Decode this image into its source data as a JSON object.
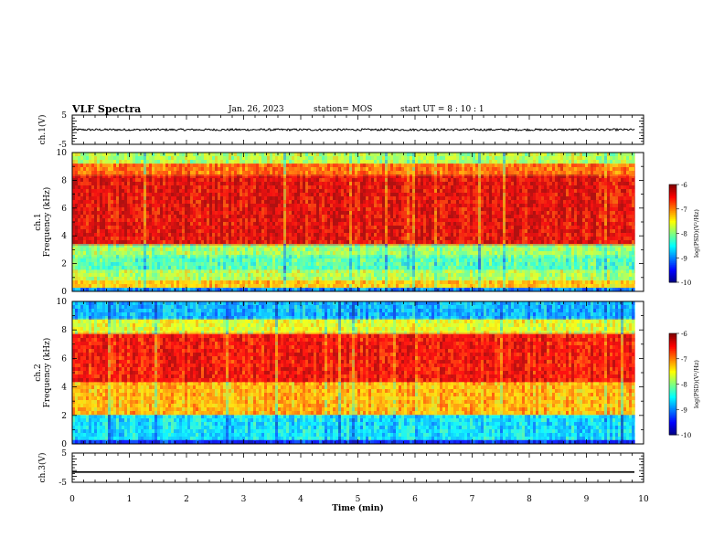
{
  "header": {
    "title": "VLF Spectra",
    "date": "Jan. 26, 2023",
    "station": "station= MOS",
    "start": "start UT =  8 : 10 : 1"
  },
  "chart_data": [
    {
      "type": "line",
      "ylabel": "ch.1(V)",
      "xlim": [
        0,
        10
      ],
      "ylim": [
        -5,
        5
      ],
      "y_ticks": [
        "5",
        "-5"
      ],
      "trace": {
        "level_v": 0.0,
        "noise_v": 0.35,
        "end_min": 9.85
      }
    },
    {
      "type": "heatmap",
      "ylabel": "ch.1\nFrequency (kHz)",
      "xlim": [
        0,
        10
      ],
      "ylim": [
        0,
        10
      ],
      "y_ticks": [
        "0",
        "2",
        "4",
        "6",
        "8",
        "10"
      ],
      "data_end_min": 9.85,
      "colorbar": {
        "label": "log(PSD)(V²/Hz)",
        "range": [
          -10,
          -6
        ],
        "ticks": [
          "-6",
          "-7",
          "-8",
          "-9",
          "-10"
        ]
      },
      "bands_khz": [
        {
          "from": 0.0,
          "to": 0.25,
          "level": -9.0
        },
        {
          "from": 0.25,
          "to": 0.8,
          "level": -7.3
        },
        {
          "from": 0.8,
          "to": 1.5,
          "level": -7.8
        },
        {
          "from": 1.5,
          "to": 2.5,
          "level": -8.2
        },
        {
          "from": 2.5,
          "to": 3.3,
          "level": -7.9
        },
        {
          "from": 3.3,
          "to": 8.3,
          "level": -6.4
        },
        {
          "from": 8.3,
          "to": 9.2,
          "level": -6.9
        },
        {
          "from": 9.2,
          "to": 10.0,
          "level": -7.8
        }
      ]
    },
    {
      "type": "heatmap",
      "ylabel": "ch.2\nFrequency (kHz)",
      "xlim": [
        0,
        10
      ],
      "ylim": [
        0,
        10
      ],
      "y_ticks": [
        "0",
        "2",
        "4",
        "6",
        "8",
        "10"
      ],
      "data_end_min": 9.85,
      "colorbar": {
        "label": "log(PSD)(V²/Hz)",
        "range": [
          -10,
          -6
        ],
        "ticks": [
          "-6",
          "-7",
          "-8",
          "-9",
          "-10"
        ]
      },
      "bands_khz": [
        {
          "from": 0.0,
          "to": 0.3,
          "level": -9.4
        },
        {
          "from": 0.3,
          "to": 2.0,
          "level": -8.6
        },
        {
          "from": 2.0,
          "to": 4.3,
          "level": -7.2
        },
        {
          "from": 4.3,
          "to": 7.8,
          "level": -6.5
        },
        {
          "from": 7.8,
          "to": 8.8,
          "level": -7.6
        },
        {
          "from": 8.8,
          "to": 10.0,
          "level": -8.8
        }
      ]
    },
    {
      "type": "line",
      "ylabel": "ch.3(V)",
      "xlabel": "Time (min)",
      "xlim": [
        0,
        10
      ],
      "ylim": [
        -5,
        5
      ],
      "y_ticks": [
        "5",
        "-5"
      ],
      "x_ticks": [
        "0",
        "1",
        "2",
        "3",
        "4",
        "5",
        "6",
        "7",
        "8",
        "9",
        "10"
      ],
      "trace": {
        "level_v": -1.5,
        "noise_v": 0.0,
        "end_min": 9.85
      }
    }
  ]
}
